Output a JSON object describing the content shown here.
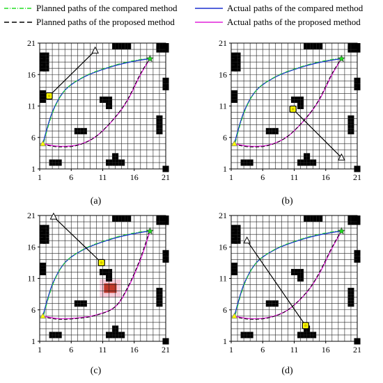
{
  "legend": {
    "planned_compared": "Planned paths of the compared method",
    "actual_compared": "Actual paths of the compared method",
    "planned_proposed": "Planned paths of the proposed method",
    "actual_proposed": "Actual paths of the proposed method"
  },
  "colors": {
    "planned_compared": "#22dd22",
    "actual_compared": "#1a2fcf",
    "planned_proposed": "#000000",
    "actual_proposed": "#e020d8",
    "obstacle": "#000000",
    "moving_obstacle": "#ffff00",
    "start_marker": "#ffff00",
    "goal_marker": "#22dd22",
    "danger_zone": "#c0392b"
  },
  "chart_data": [
    {
      "type": "line",
      "caption": "(a)",
      "xlim": [
        1,
        21
      ],
      "ylim": [
        1,
        21
      ],
      "x_ticks": [
        "1",
        "6",
        "11",
        "16",
        "21"
      ],
      "y_ticks": [
        "1",
        "6",
        "11",
        "16",
        "21"
      ],
      "grid": true,
      "obstacles": [
        [
          1,
          17
        ],
        [
          1,
          18
        ],
        [
          1,
          19
        ],
        [
          2,
          17
        ],
        [
          2,
          18
        ],
        [
          2,
          19
        ],
        [
          20,
          20
        ],
        [
          20,
          21
        ],
        [
          21,
          20
        ],
        [
          21,
          21
        ],
        [
          11,
          12
        ],
        [
          12,
          11
        ],
        [
          12,
          12
        ],
        [
          20,
          7
        ],
        [
          20,
          8
        ],
        [
          20,
          9
        ],
        [
          3,
          2
        ],
        [
          4,
          2
        ],
        [
          12,
          2
        ],
        [
          13,
          2
        ],
        [
          13,
          3
        ],
        [
          14,
          2
        ],
        [
          21,
          1
        ],
        [
          7,
          7
        ],
        [
          8,
          7
        ],
        [
          21,
          14
        ],
        [
          21,
          15
        ],
        [
          13,
          21
        ],
        [
          14,
          21
        ],
        [
          15,
          21
        ],
        [
          1,
          12
        ],
        [
          1,
          13
        ]
      ],
      "moving_obstacle": {
        "position": [
          2.5,
          12.6
        ],
        "trajectory_end": [
          9.8,
          19.8
        ]
      },
      "series": [
        {
          "name": "Actual paths of the compared method",
          "x": [
            1.5,
            3,
            5,
            8,
            11,
            14,
            17,
            18.5
          ],
          "y": [
            5.0,
            10,
            13.5,
            15.6,
            16.8,
            17.7,
            18.3,
            18.5
          ]
        },
        {
          "name": "Actual paths of the proposed method",
          "x": [
            1.5,
            4,
            7,
            10,
            13,
            15,
            17,
            18.5
          ],
          "y": [
            5.0,
            4.6,
            4.8,
            6.2,
            9.2,
            12,
            16,
            18.5
          ]
        }
      ]
    },
    {
      "type": "line",
      "caption": "(b)",
      "xlim": [
        1,
        21
      ],
      "ylim": [
        1,
        21
      ],
      "x_ticks": [
        "1",
        "6",
        "11",
        "16",
        "21"
      ],
      "y_ticks": [
        "1",
        "6",
        "11",
        "16",
        "21"
      ],
      "grid": true,
      "obstacles": [
        [
          1,
          17
        ],
        [
          1,
          18
        ],
        [
          1,
          19
        ],
        [
          2,
          17
        ],
        [
          2,
          18
        ],
        [
          2,
          19
        ],
        [
          20,
          20
        ],
        [
          20,
          21
        ],
        [
          21,
          20
        ],
        [
          21,
          21
        ],
        [
          11,
          12
        ],
        [
          12,
          11
        ],
        [
          12,
          12
        ],
        [
          20,
          7
        ],
        [
          20,
          8
        ],
        [
          20,
          9
        ],
        [
          3,
          2
        ],
        [
          4,
          2
        ],
        [
          12,
          2
        ],
        [
          13,
          2
        ],
        [
          13,
          3
        ],
        [
          14,
          2
        ],
        [
          21,
          1
        ],
        [
          7,
          7
        ],
        [
          8,
          7
        ],
        [
          21,
          14
        ],
        [
          21,
          15
        ],
        [
          13,
          21
        ],
        [
          14,
          21
        ],
        [
          15,
          21
        ],
        [
          1,
          12
        ],
        [
          1,
          13
        ]
      ],
      "moving_obstacle": {
        "position": [
          10.8,
          10.5
        ],
        "trajectory_end": [
          18.5,
          2.8
        ]
      },
      "series": [
        {
          "name": "Actual paths of the compared method",
          "x": [
            1.5,
            3,
            5,
            8,
            11,
            14,
            17,
            18.5
          ],
          "y": [
            5.0,
            10,
            13.5,
            15.6,
            16.8,
            17.7,
            18.3,
            18.5
          ]
        },
        {
          "name": "Actual paths of the proposed method",
          "x": [
            1.5,
            4,
            7,
            10,
            13,
            15,
            17,
            18.5
          ],
          "y": [
            5.0,
            4.6,
            4.8,
            6.2,
            9.2,
            12,
            16,
            18.5
          ]
        }
      ]
    },
    {
      "type": "line",
      "caption": "(c)",
      "xlim": [
        1,
        21
      ],
      "ylim": [
        1,
        21
      ],
      "x_ticks": [
        "1",
        "6",
        "11",
        "16",
        "21"
      ],
      "y_ticks": [
        "1",
        "6",
        "11",
        "16",
        "21"
      ],
      "grid": true,
      "obstacles": [
        [
          1,
          17
        ],
        [
          1,
          18
        ],
        [
          1,
          19
        ],
        [
          2,
          17
        ],
        [
          2,
          18
        ],
        [
          2,
          19
        ],
        [
          20,
          20
        ],
        [
          20,
          21
        ],
        [
          21,
          20
        ],
        [
          21,
          21
        ],
        [
          11,
          12
        ],
        [
          12,
          11
        ],
        [
          12,
          12
        ],
        [
          20,
          7
        ],
        [
          20,
          8
        ],
        [
          20,
          9
        ],
        [
          3,
          2
        ],
        [
          4,
          2
        ],
        [
          12,
          2
        ],
        [
          13,
          2
        ],
        [
          13,
          3
        ],
        [
          14,
          2
        ],
        [
          21,
          1
        ],
        [
          7,
          7
        ],
        [
          8,
          7
        ],
        [
          21,
          14
        ],
        [
          21,
          15
        ],
        [
          13,
          21
        ],
        [
          14,
          21
        ],
        [
          15,
          21
        ],
        [
          1,
          12
        ],
        [
          1,
          13
        ]
      ],
      "moving_obstacle": {
        "position": [
          10.8,
          13.5
        ],
        "trajectory_end": [
          3.2,
          20.8
        ]
      },
      "danger_zone": {
        "x": [
          11.2,
          13.2
        ],
        "y": [
          8.7,
          10.2
        ]
      },
      "series": [
        {
          "name": "Actual paths of the compared method",
          "x": [
            1.5,
            3,
            5,
            8,
            11,
            14,
            17,
            18.5
          ],
          "y": [
            5.0,
            10,
            13.5,
            15.6,
            16.8,
            17.7,
            18.3,
            18.5
          ]
        },
        {
          "name": "Actual paths of the proposed method",
          "x": [
            1.5,
            4,
            7,
            10,
            13,
            15,
            17,
            18.5
          ],
          "y": [
            5.0,
            4.6,
            4.7,
            5.2,
            6.5,
            9.5,
            14,
            18.5
          ]
        }
      ]
    },
    {
      "type": "line",
      "caption": "(d)",
      "xlim": [
        1,
        21
      ],
      "ylim": [
        1,
        21
      ],
      "x_ticks": [
        "1",
        "6",
        "11",
        "16",
        "21"
      ],
      "y_ticks": [
        "1",
        "6",
        "11",
        "16",
        "21"
      ],
      "grid": true,
      "obstacles": [
        [
          1,
          17
        ],
        [
          1,
          18
        ],
        [
          1,
          19
        ],
        [
          2,
          17
        ],
        [
          2,
          18
        ],
        [
          2,
          19
        ],
        [
          20,
          20
        ],
        [
          20,
          21
        ],
        [
          21,
          20
        ],
        [
          21,
          21
        ],
        [
          11,
          12
        ],
        [
          12,
          11
        ],
        [
          12,
          12
        ],
        [
          20,
          7
        ],
        [
          20,
          8
        ],
        [
          20,
          9
        ],
        [
          3,
          2
        ],
        [
          4,
          2
        ],
        [
          12,
          2
        ],
        [
          13,
          2
        ],
        [
          13,
          3
        ],
        [
          14,
          2
        ],
        [
          21,
          1
        ],
        [
          7,
          7
        ],
        [
          8,
          7
        ],
        [
          21,
          14
        ],
        [
          21,
          15
        ],
        [
          13,
          21
        ],
        [
          14,
          21
        ],
        [
          15,
          21
        ],
        [
          1,
          12
        ],
        [
          1,
          13
        ]
      ],
      "moving_obstacle": {
        "position": [
          12.8,
          3.5
        ],
        "trajectory_end": [
          3.5,
          17.0
        ]
      },
      "series": [
        {
          "name": "Actual paths of the compared method",
          "x": [
            1.5,
            3,
            5,
            8,
            11,
            14,
            17,
            18.5
          ],
          "y": [
            5.0,
            10,
            13.5,
            15.6,
            16.8,
            17.7,
            18.3,
            18.5
          ]
        },
        {
          "name": "Actual paths of the proposed method",
          "x": [
            1.5,
            4,
            7,
            10,
            13,
            15,
            17,
            18.5
          ],
          "y": [
            5.0,
            4.6,
            4.8,
            6.0,
            8.8,
            11.8,
            15.8,
            18.5
          ]
        }
      ]
    }
  ]
}
